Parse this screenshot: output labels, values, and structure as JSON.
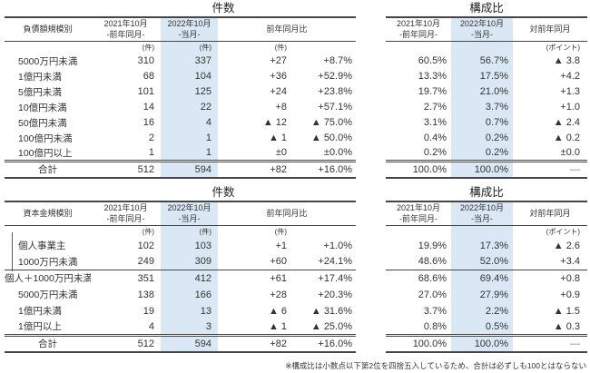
{
  "colors": {
    "highlight": "#d9e8f4",
    "rule": "#454545",
    "text": "#333333",
    "dash_gray": "#808080"
  },
  "footnote": "※構成比は小数点以下第2位を四捨五入しているため、合計は必ずしも100とはならない",
  "debt_count": {
    "title": "件数",
    "category_header": "負債額規模別",
    "col_prev": "2021年10月\n-前年同月-",
    "col_cur": "2022年10月\n-当月-",
    "col_yoy": "前年同月比",
    "unit_count": "(件)",
    "rows": [
      {
        "label": "5000万円未満",
        "prev": "310",
        "cur": "337",
        "diff": "+27",
        "pct": "+8.7%"
      },
      {
        "label": "1億円未満",
        "prev": "68",
        "cur": "104",
        "diff": "+36",
        "pct": "+52.9%"
      },
      {
        "label": "5億円未満",
        "prev": "101",
        "cur": "125",
        "diff": "+24",
        "pct": "+23.8%"
      },
      {
        "label": "10億円未満",
        "prev": "14",
        "cur": "22",
        "diff": "+8",
        "pct": "+57.1%"
      },
      {
        "label": "50億円未満",
        "prev": "16",
        "cur": "4",
        "diff": "▲ 12",
        "pct": "▲ 75.0%"
      },
      {
        "label": "100億円未満",
        "prev": "2",
        "cur": "1",
        "diff": "▲ 1",
        "pct": "▲ 50.0%"
      },
      {
        "label": "100億円以上",
        "prev": "1",
        "cur": "1",
        "diff": "±0",
        "pct": "±0.0%"
      }
    ],
    "total": {
      "label": "合計",
      "prev": "512",
      "cur": "594",
      "diff": "+82",
      "pct": "+16.0%"
    }
  },
  "debt_ratio": {
    "title": "構成比",
    "col_prev": "2021年10月\n-前年同月-",
    "col_cur": "2022年10月\n-当月-",
    "col_yoy": "対前年同月",
    "unit_points": "(ポイント)",
    "rows": [
      {
        "prev": "60.5%",
        "cur": "56.7%",
        "diff": "▲ 3.8"
      },
      {
        "prev": "13.3%",
        "cur": "17.5%",
        "diff": "+4.2"
      },
      {
        "prev": "19.7%",
        "cur": "21.0%",
        "diff": "+1.3"
      },
      {
        "prev": "2.7%",
        "cur": "3.7%",
        "diff": "+1.0"
      },
      {
        "prev": "3.1%",
        "cur": "0.7%",
        "diff": "▲ 2.4"
      },
      {
        "prev": "0.4%",
        "cur": "0.2%",
        "diff": "▲ 0.2"
      },
      {
        "prev": "0.2%",
        "cur": "0.2%",
        "diff": "±0.0"
      }
    ],
    "total": {
      "prev": "100.0%",
      "cur": "100.0%",
      "diff": "—"
    }
  },
  "capital_count": {
    "title": "件数",
    "category_header": "資本金規模別",
    "col_prev": "2021年10月\n-前年同月-",
    "col_cur": "2022年10月\n-当月-",
    "col_yoy": "前年同月比",
    "unit_count": "(件)",
    "rows": [
      {
        "label": "個人事業主",
        "prev": "102",
        "cur": "103",
        "diff": "+1",
        "pct": "+1.0%"
      },
      {
        "label": "1000万円未満",
        "prev": "249",
        "cur": "309",
        "diff": "+60",
        "pct": "+24.1%"
      },
      {
        "label": "個人＋1000万円未満",
        "prev": "351",
        "cur": "412",
        "diff": "+61",
        "pct": "+17.4%",
        "flush": true,
        "separator": true
      },
      {
        "label": "5000万円未満",
        "prev": "138",
        "cur": "166",
        "diff": "+28",
        "pct": "+20.3%"
      },
      {
        "label": "1億円未満",
        "prev": "19",
        "cur": "13",
        "diff": "▲ 6",
        "pct": "▲ 31.6%"
      },
      {
        "label": "1億円以上",
        "prev": "4",
        "cur": "3",
        "diff": "▲ 1",
        "pct": "▲ 25.0%"
      }
    ],
    "total": {
      "label": "合計",
      "prev": "512",
      "cur": "594",
      "diff": "+82",
      "pct": "+16.0%"
    }
  },
  "capital_ratio": {
    "title": "構成比",
    "col_prev": "2021年10月\n-前年同月-",
    "col_cur": "2022年10月\n-当月-",
    "col_yoy": "対前年同月",
    "unit_points": "(ポイント)",
    "rows": [
      {
        "prev": "19.9%",
        "cur": "17.3%",
        "diff": "▲ 2.6"
      },
      {
        "prev": "48.6%",
        "cur": "52.0%",
        "diff": "+3.4",
        "separator_after": true
      },
      {
        "prev": "68.6%",
        "cur": "69.4%",
        "diff": "+0.8",
        "separator": true
      },
      {
        "prev": "27.0%",
        "cur": "27.9%",
        "diff": "+0.9"
      },
      {
        "prev": "3.7%",
        "cur": "2.2%",
        "diff": "▲ 1.5"
      },
      {
        "prev": "0.8%",
        "cur": "0.5%",
        "diff": "▲ 0.3"
      }
    ],
    "total": {
      "prev": "100.0%",
      "cur": "100.0%",
      "diff": "—"
    }
  }
}
